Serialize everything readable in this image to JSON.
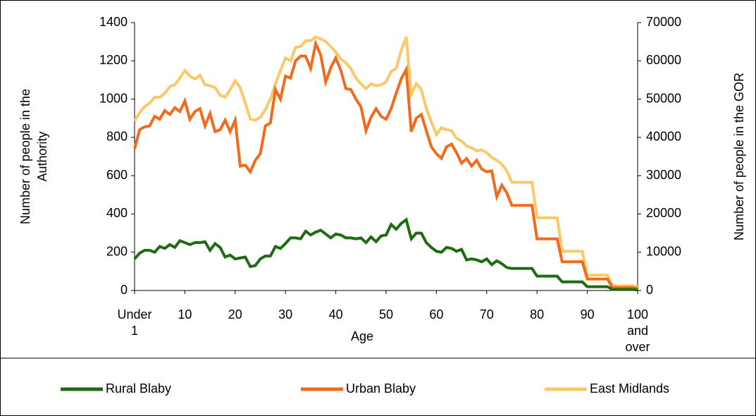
{
  "chart_data": {
    "type": "line",
    "xlabel": "Age",
    "ylabel": "Number of people in the Authority",
    "y2label": "Number of people in the GOR",
    "categories": [
      "Under 1",
      null,
      null,
      null,
      null,
      null,
      null,
      null,
      null,
      null,
      "10",
      null,
      null,
      null,
      null,
      null,
      null,
      null,
      null,
      null,
      "20",
      null,
      null,
      null,
      null,
      null,
      null,
      null,
      null,
      null,
      "30",
      null,
      null,
      null,
      null,
      null,
      null,
      null,
      null,
      null,
      "40",
      null,
      null,
      null,
      null,
      null,
      null,
      null,
      null,
      null,
      "50",
      null,
      null,
      null,
      null,
      null,
      null,
      null,
      null,
      null,
      "60",
      null,
      null,
      null,
      null,
      null,
      null,
      null,
      null,
      null,
      "70",
      null,
      null,
      null,
      null,
      null,
      null,
      null,
      null,
      null,
      "80",
      null,
      null,
      null,
      null,
      null,
      null,
      null,
      null,
      null,
      "90",
      null,
      null,
      null,
      null,
      null,
      null,
      null,
      null,
      null,
      "100 and over"
    ],
    "ylim": [
      0,
      1400
    ],
    "yticks": [
      0,
      200,
      400,
      600,
      800,
      1000,
      1200,
      1400
    ],
    "y2lim": [
      0,
      70000
    ],
    "y2ticks": [
      0,
      10000,
      20000,
      30000,
      40000,
      50000,
      60000,
      70000
    ],
    "grid": false,
    "legend": "bottom",
    "series": [
      {
        "name": "Rural Blaby",
        "color": "#1e6b12",
        "values": [
          165,
          195,
          210,
          210,
          200,
          230,
          220,
          240,
          225,
          260,
          250,
          240,
          250,
          250,
          255,
          210,
          245,
          225,
          175,
          185,
          165,
          170,
          175,
          125,
          130,
          165,
          180,
          180,
          230,
          220,
          245,
          275,
          275,
          270,
          310,
          290,
          305,
          315,
          295,
          275,
          295,
          290,
          275,
          275,
          270,
          275,
          250,
          280,
          255,
          285,
          290,
          345,
          320,
          350,
          370,
          270,
          300,
          300,
          250,
          225,
          205,
          200,
          225,
          220,
          205,
          215,
          160,
          165,
          160,
          150,
          165,
          135,
          155,
          140,
          120,
          115,
          115,
          115,
          115,
          115,
          75,
          75,
          75,
          75,
          75,
          45,
          45,
          45,
          45,
          45,
          20,
          20,
          20,
          20,
          20,
          5,
          5,
          5,
          5,
          5,
          3
        ]
      },
      {
        "name": "Urban Blaby",
        "color": "#f26a1b",
        "values": [
          740,
          840,
          855,
          860,
          910,
          895,
          940,
          920,
          955,
          935,
          990,
          895,
          935,
          950,
          860,
          925,
          830,
          840,
          890,
          830,
          890,
          650,
          655,
          620,
          680,
          715,
          860,
          875,
          1050,
          1000,
          1120,
          1110,
          1200,
          1225,
          1225,
          1160,
          1290,
          1230,
          1090,
          1165,
          1215,
          1150,
          1055,
          1050,
          1000,
          960,
          835,
          905,
          950,
          910,
          895,
          950,
          1030,
          1105,
          1155,
          830,
          900,
          920,
          835,
          750,
          715,
          690,
          750,
          765,
          720,
          665,
          690,
          650,
          680,
          635,
          620,
          625,
          490,
          550,
          510,
          445,
          445,
          445,
          445,
          445,
          270,
          270,
          270,
          270,
          270,
          150,
          150,
          150,
          150,
          150,
          60,
          60,
          60,
          60,
          60,
          15,
          15,
          15,
          15,
          15,
          10
        ]
      },
      {
        "name": "East Midlands",
        "color": "#fdc86a",
        "axis": "y2",
        "values": [
          44250,
          46500,
          48000,
          49000,
          50500,
          50500,
          51500,
          53250,
          53750,
          55500,
          57500,
          56000,
          55250,
          56250,
          53750,
          53500,
          53000,
          51000,
          50500,
          52500,
          54750,
          53000,
          49000,
          44750,
          44500,
          45250,
          47250,
          50000,
          54000,
          57500,
          60750,
          60000,
          63500,
          63750,
          65250,
          65250,
          66250,
          65750,
          65000,
          63750,
          62250,
          60500,
          59500,
          58000,
          55500,
          54000,
          52750,
          54000,
          53500,
          53750,
          54500,
          57250,
          58000,
          62750,
          66250,
          51250,
          54000,
          52500,
          47500,
          44000,
          40750,
          42500,
          42000,
          41750,
          39750,
          39000,
          37750,
          37250,
          36500,
          36750,
          36000,
          34750,
          34000,
          33000,
          31250,
          28250,
          28250,
          28250,
          28250,
          28250,
          19000,
          19000,
          19000,
          19000,
          19000,
          10250,
          10250,
          10250,
          10250,
          10250,
          4000,
          4000,
          4000,
          4000,
          4000,
          1250,
          1250,
          1250,
          1250,
          1250,
          1000
        ]
      }
    ]
  }
}
